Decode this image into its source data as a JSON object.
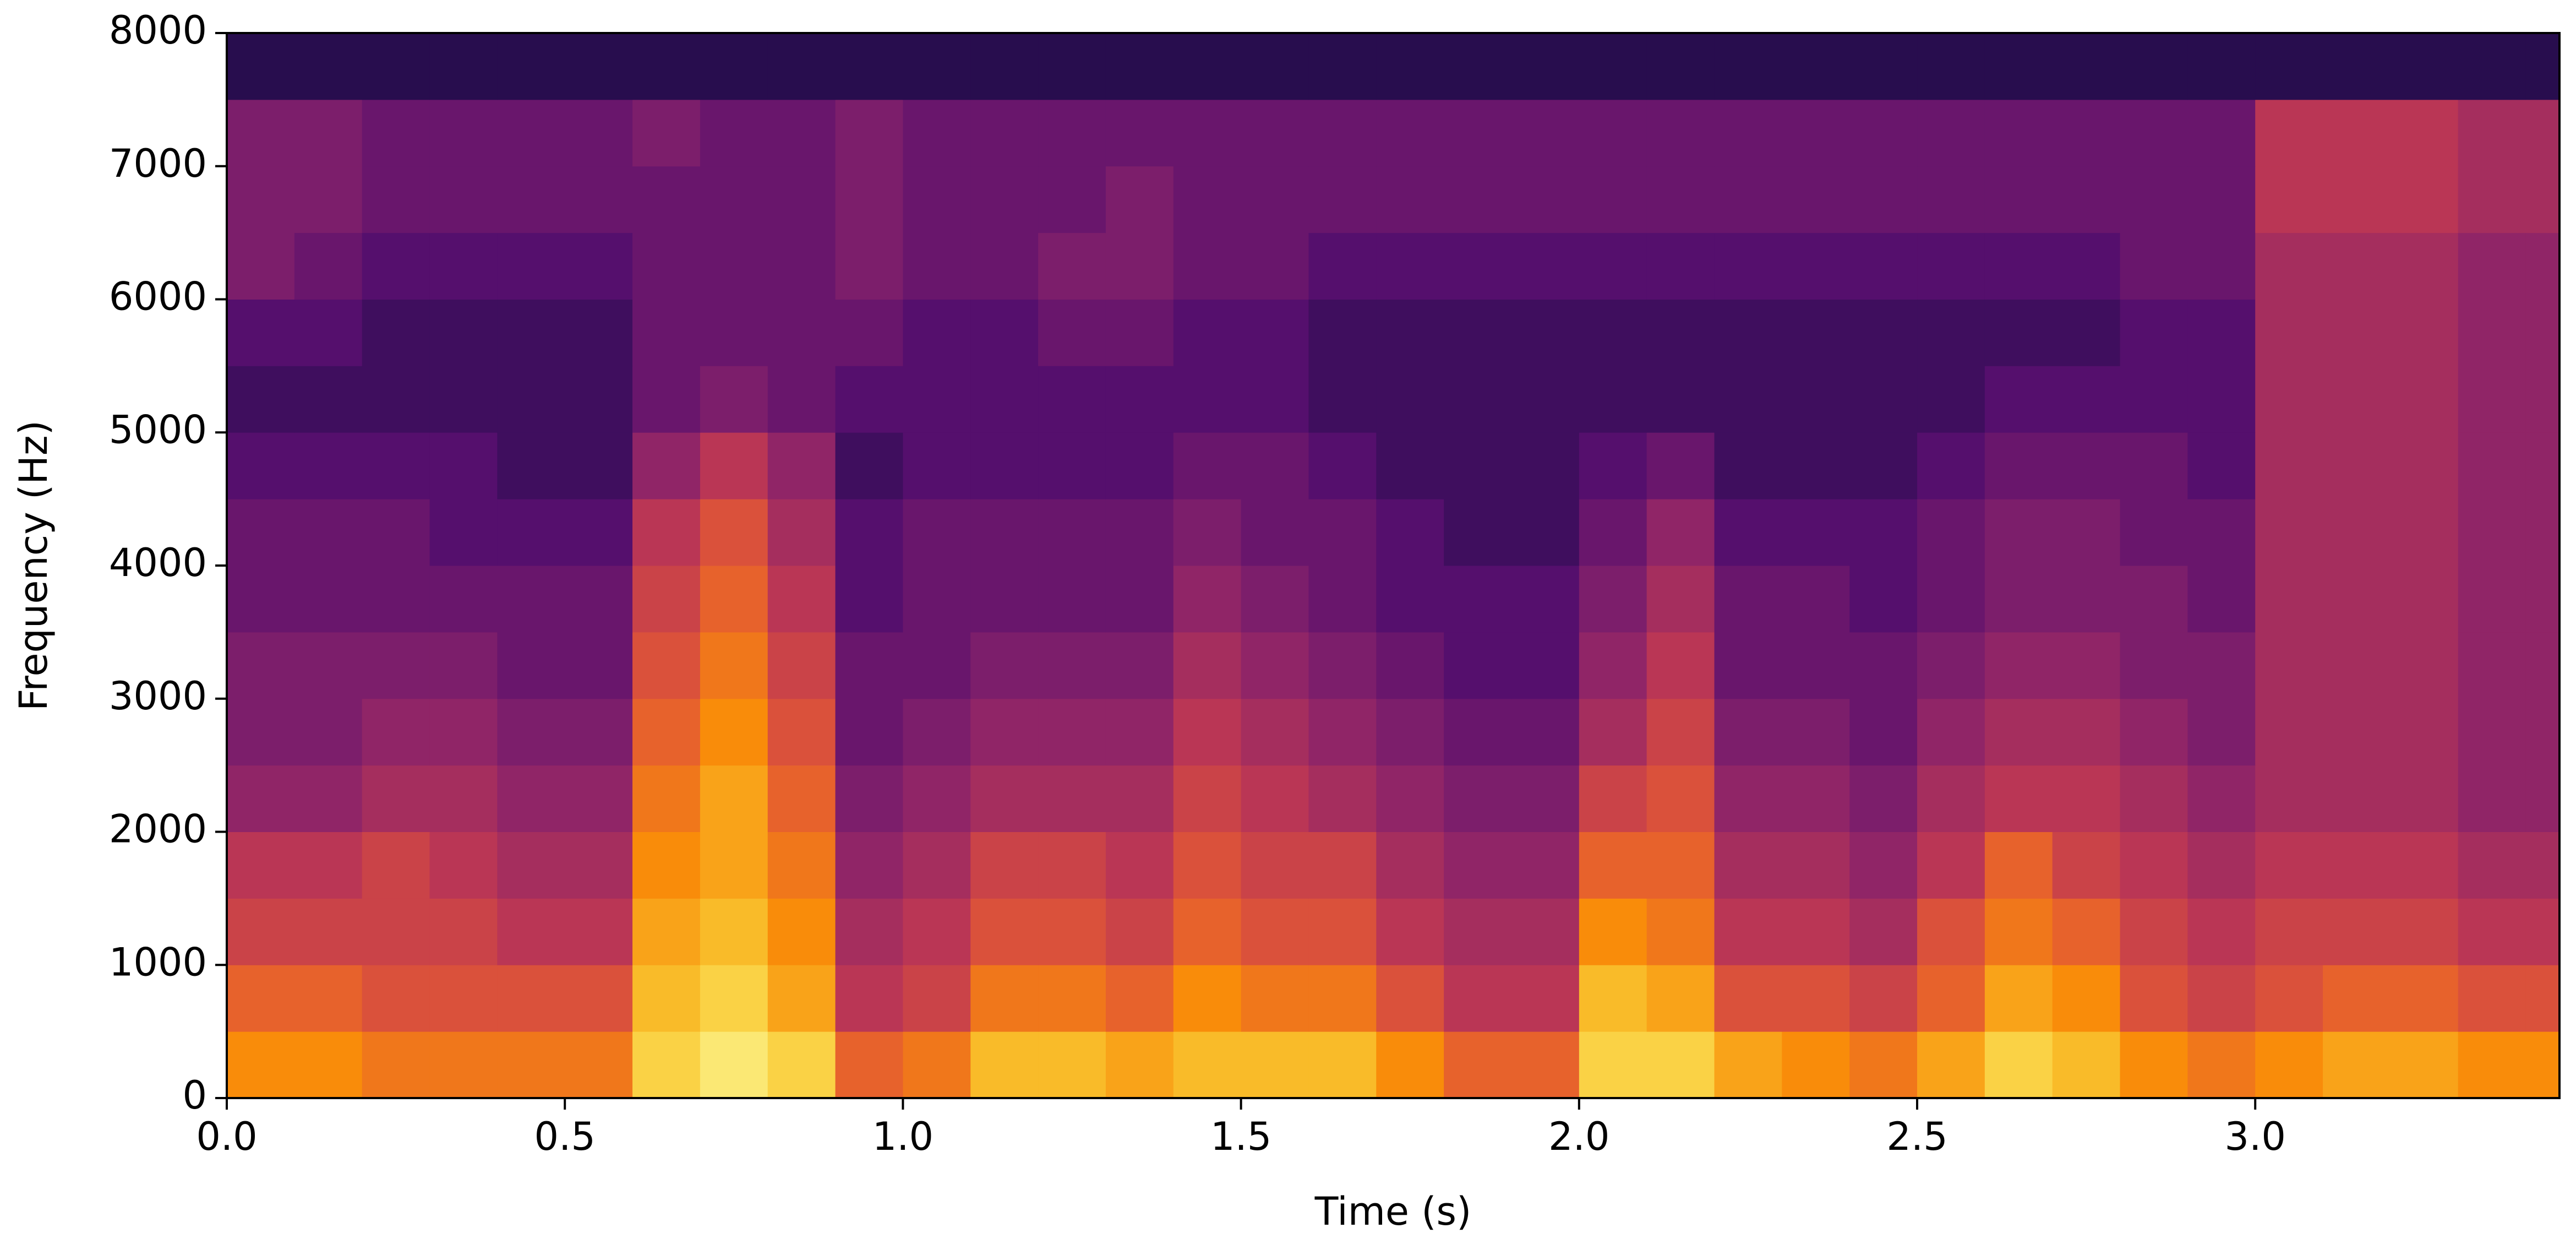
{
  "chart_data": {
    "type": "spectrogram",
    "colormap": "inferno",
    "xlabel": "Time (s)",
    "ylabel": "Frequency (Hz)",
    "xlim": [
      0,
      3.45
    ],
    "ylim": [
      0,
      8000
    ],
    "xticks": [
      {
        "value": 0,
        "label": "0.0"
      },
      0.5,
      {
        "value": 1,
        "label": "1.0"
      },
      1.5,
      {
        "value": 2,
        "label": "2.0"
      },
      2.5,
      {
        "value": 3,
        "label": "3.0"
      }
    ],
    "yticks": [
      0,
      1000,
      2000,
      3000,
      4000,
      5000,
      6000,
      7000,
      8000
    ],
    "time_bins": [
      0,
      0.1,
      0.2,
      0.3,
      0.4,
      0.5,
      0.6,
      0.7,
      0.8,
      0.9,
      1,
      1.1,
      1.2,
      1.3,
      1.4,
      1.5,
      1.6,
      1.7,
      1.8,
      1.9,
      2,
      2.1,
      2.2,
      2.3,
      2.4,
      2.5,
      2.6,
      2.7,
      2.8,
      2.9,
      3,
      3.1,
      3.2,
      3.3,
      3.4,
      3.45
    ],
    "freq_bins": [
      0,
      500,
      1000,
      1500,
      2000,
      2500,
      3000,
      3500,
      4000,
      4500,
      5000,
      5500,
      6000,
      6500,
      7000,
      7500,
      8000
    ],
    "z": [
      [
        0.75,
        0.75,
        0.7,
        0.7,
        0.7,
        0.7,
        0.9,
        0.95,
        0.9,
        0.65,
        0.7,
        0.85,
        0.85,
        0.8,
        0.85,
        0.85,
        0.85,
        0.75,
        0.65,
        0.65,
        0.9,
        0.9,
        0.8,
        0.75,
        0.7,
        0.8,
        0.9,
        0.85,
        0.75,
        0.7,
        0.75,
        0.8,
        0.8,
        0.75,
        0.75
      ],
      [
        0.65,
        0.65,
        0.6,
        0.6,
        0.6,
        0.6,
        0.85,
        0.9,
        0.8,
        0.5,
        0.55,
        0.7,
        0.7,
        0.65,
        0.75,
        0.7,
        0.7,
        0.6,
        0.5,
        0.5,
        0.85,
        0.8,
        0.6,
        0.6,
        0.55,
        0.65,
        0.8,
        0.75,
        0.6,
        0.55,
        0.6,
        0.65,
        0.65,
        0.6,
        0.6
      ],
      [
        0.55,
        0.55,
        0.55,
        0.55,
        0.5,
        0.5,
        0.8,
        0.85,
        0.75,
        0.45,
        0.5,
        0.6,
        0.6,
        0.55,
        0.65,
        0.6,
        0.6,
        0.5,
        0.45,
        0.45,
        0.75,
        0.7,
        0.5,
        0.5,
        0.45,
        0.6,
        0.7,
        0.65,
        0.55,
        0.5,
        0.55,
        0.55,
        0.55,
        0.5,
        0.5
      ],
      [
        0.5,
        0.5,
        0.55,
        0.5,
        0.45,
        0.45,
        0.75,
        0.8,
        0.7,
        0.4,
        0.45,
        0.55,
        0.55,
        0.5,
        0.6,
        0.55,
        0.55,
        0.45,
        0.4,
        0.4,
        0.65,
        0.65,
        0.45,
        0.45,
        0.4,
        0.5,
        0.65,
        0.55,
        0.5,
        0.45,
        0.5,
        0.5,
        0.5,
        0.45,
        0.45
      ],
      [
        0.4,
        0.4,
        0.45,
        0.45,
        0.4,
        0.4,
        0.7,
        0.8,
        0.65,
        0.35,
        0.4,
        0.45,
        0.45,
        0.45,
        0.55,
        0.5,
        0.45,
        0.4,
        0.35,
        0.35,
        0.55,
        0.6,
        0.4,
        0.4,
        0.35,
        0.45,
        0.5,
        0.5,
        0.45,
        0.4,
        0.45,
        0.45,
        0.45,
        0.4,
        0.4
      ],
      [
        0.35,
        0.35,
        0.4,
        0.4,
        0.35,
        0.35,
        0.65,
        0.75,
        0.6,
        0.3,
        0.35,
        0.4,
        0.4,
        0.4,
        0.5,
        0.45,
        0.4,
        0.35,
        0.3,
        0.3,
        0.45,
        0.55,
        0.35,
        0.35,
        0.3,
        0.4,
        0.45,
        0.45,
        0.4,
        0.35,
        0.45,
        0.45,
        0.45,
        0.4,
        0.4
      ],
      [
        0.35,
        0.35,
        0.35,
        0.35,
        0.3,
        0.3,
        0.6,
        0.7,
        0.55,
        0.3,
        0.3,
        0.35,
        0.35,
        0.35,
        0.45,
        0.4,
        0.35,
        0.3,
        0.25,
        0.25,
        0.4,
        0.5,
        0.3,
        0.3,
        0.3,
        0.35,
        0.4,
        0.4,
        0.35,
        0.35,
        0.45,
        0.45,
        0.45,
        0.4,
        0.4
      ],
      [
        0.3,
        0.3,
        0.3,
        0.3,
        0.3,
        0.3,
        0.55,
        0.65,
        0.5,
        0.25,
        0.3,
        0.3,
        0.3,
        0.3,
        0.4,
        0.35,
        0.3,
        0.25,
        0.25,
        0.25,
        0.35,
        0.45,
        0.3,
        0.3,
        0.25,
        0.3,
        0.35,
        0.35,
        0.35,
        0.3,
        0.45,
        0.45,
        0.45,
        0.4,
        0.4
      ],
      [
        0.3,
        0.3,
        0.3,
        0.25,
        0.25,
        0.25,
        0.5,
        0.6,
        0.45,
        0.25,
        0.3,
        0.3,
        0.3,
        0.3,
        0.35,
        0.3,
        0.3,
        0.25,
        0.2,
        0.2,
        0.3,
        0.4,
        0.25,
        0.25,
        0.25,
        0.3,
        0.35,
        0.35,
        0.3,
        0.3,
        0.45,
        0.45,
        0.45,
        0.4,
        0.4
      ],
      [
        0.25,
        0.25,
        0.25,
        0.25,
        0.2,
        0.2,
        0.4,
        0.5,
        0.4,
        0.2,
        0.25,
        0.25,
        0.25,
        0.25,
        0.3,
        0.3,
        0.25,
        0.2,
        0.2,
        0.2,
        0.25,
        0.3,
        0.2,
        0.2,
        0.2,
        0.25,
        0.3,
        0.3,
        0.3,
        0.25,
        0.45,
        0.45,
        0.45,
        0.4,
        0.4
      ],
      [
        0.2,
        0.2,
        0.2,
        0.2,
        0.2,
        0.2,
        0.3,
        0.35,
        0.3,
        0.25,
        0.25,
        0.25,
        0.25,
        0.25,
        0.25,
        0.25,
        0.2,
        0.2,
        0.2,
        0.2,
        0.2,
        0.2,
        0.2,
        0.2,
        0.2,
        0.2,
        0.25,
        0.25,
        0.25,
        0.25,
        0.45,
        0.45,
        0.45,
        0.4,
        0.4
      ],
      [
        0.25,
        0.25,
        0.2,
        0.2,
        0.2,
        0.2,
        0.3,
        0.3,
        0.3,
        0.3,
        0.25,
        0.25,
        0.3,
        0.3,
        0.25,
        0.25,
        0.2,
        0.2,
        0.2,
        0.2,
        0.2,
        0.2,
        0.2,
        0.2,
        0.2,
        0.2,
        0.2,
        0.2,
        0.25,
        0.25,
        0.45,
        0.45,
        0.45,
        0.4,
        0.4
      ],
      [
        0.35,
        0.3,
        0.25,
        0.25,
        0.25,
        0.25,
        0.3,
        0.3,
        0.3,
        0.35,
        0.3,
        0.3,
        0.35,
        0.35,
        0.3,
        0.3,
        0.25,
        0.25,
        0.25,
        0.25,
        0.25,
        0.25,
        0.25,
        0.25,
        0.25,
        0.25,
        0.25,
        0.25,
        0.3,
        0.3,
        0.45,
        0.45,
        0.45,
        0.4,
        0.4
      ],
      [
        0.35,
        0.35,
        0.3,
        0.3,
        0.3,
        0.3,
        0.3,
        0.3,
        0.3,
        0.35,
        0.3,
        0.3,
        0.3,
        0.35,
        0.3,
        0.3,
        0.3,
        0.3,
        0.3,
        0.3,
        0.3,
        0.3,
        0.3,
        0.3,
        0.3,
        0.3,
        0.3,
        0.3,
        0.3,
        0.3,
        0.5,
        0.5,
        0.5,
        0.45,
        0.45
      ],
      [
        0.35,
        0.35,
        0.3,
        0.3,
        0.3,
        0.3,
        0.35,
        0.3,
        0.3,
        0.35,
        0.3,
        0.3,
        0.3,
        0.3,
        0.3,
        0.3,
        0.3,
        0.3,
        0.3,
        0.3,
        0.3,
        0.3,
        0.3,
        0.3,
        0.3,
        0.3,
        0.3,
        0.3,
        0.3,
        0.3,
        0.5,
        0.5,
        0.5,
        0.45,
        0.45
      ],
      [
        0.15,
        0.15,
        0.15,
        0.15,
        0.15,
        0.15,
        0.15,
        0.15,
        0.15,
        0.15,
        0.15,
        0.15,
        0.15,
        0.15,
        0.15,
        0.15,
        0.15,
        0.15,
        0.15,
        0.15,
        0.15,
        0.15,
        0.15,
        0.15,
        0.15,
        0.15,
        0.15,
        0.15,
        0.15,
        0.15,
        0.15,
        0.15,
        0.15,
        0.15,
        0.15
      ]
    ]
  }
}
